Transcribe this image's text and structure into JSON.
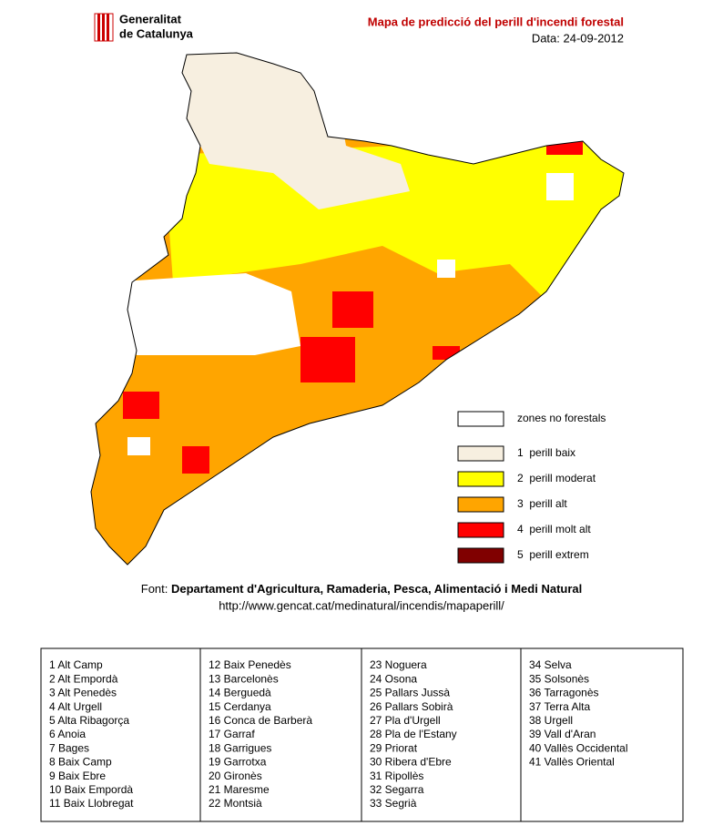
{
  "header": {
    "logo_line1": "Generalitat",
    "logo_line2": "de Catalunya",
    "title": "Mapa de predicció del perill d'incendi forestal",
    "date": "Data: 24-09-2012"
  },
  "legend": [
    {
      "label": "zones no forestals",
      "color": "#ffffff"
    },
    {
      "label": "1  perill baix",
      "color": "#f7efe0"
    },
    {
      "label": "2  perill moderat",
      "color": "#ffff00"
    },
    {
      "label": "3  perill alt",
      "color": "#ffa500"
    },
    {
      "label": "4  perill molt alt",
      "color": "#ff0000"
    },
    {
      "label": "5  perill extrem",
      "color": "#800000"
    }
  ],
  "source": {
    "prefix": "Font:",
    "name": "Departament d'Agricultura, Ramaderia, Pesca, Alimentació i Medi Natural",
    "url": "http://www.gencat.cat/medinatural/incendis/mapaperill/"
  },
  "table": {
    "columns": [
      [
        "1 Alt Camp",
        "2 Alt Empordà",
        "3 Alt Penedès",
        "4 Alt Urgell",
        "5 Alta Ribagorça",
        "6 Anoia",
        "7 Bages",
        "8 Baix Camp",
        "9 Baix Ebre",
        "10 Baix Empordà",
        "11 Baix Llobregat"
      ],
      [
        "12 Baix Penedès",
        "13 Barcelonès",
        "14 Berguedà",
        "15 Cerdanya",
        "16 Conca de Barberà",
        "17 Garraf",
        "18 Garrigues",
        "19 Garrotxa",
        "20 Gironès",
        "21 Maresme",
        "22 Montsià"
      ],
      [
        "23 Noguera",
        "24 Osona",
        "25 Pallars Jussà",
        "26 Pallars Sobirà",
        "27 Pla d'Urgell",
        "28 Pla de l'Estany",
        "29 Priorat",
        "30 Ribera d'Ebre",
        "31 Ripollès",
        "32 Segarra",
        "33 Segrià"
      ],
      [
        "34 Selva",
        "35 Solsonès",
        "36 Tarragonès",
        "37 Terra Alta",
        "38 Urgell",
        "39 Vall d'Aran",
        "40 Vallès Occidental",
        "41 Vallès Oriental"
      ]
    ]
  }
}
